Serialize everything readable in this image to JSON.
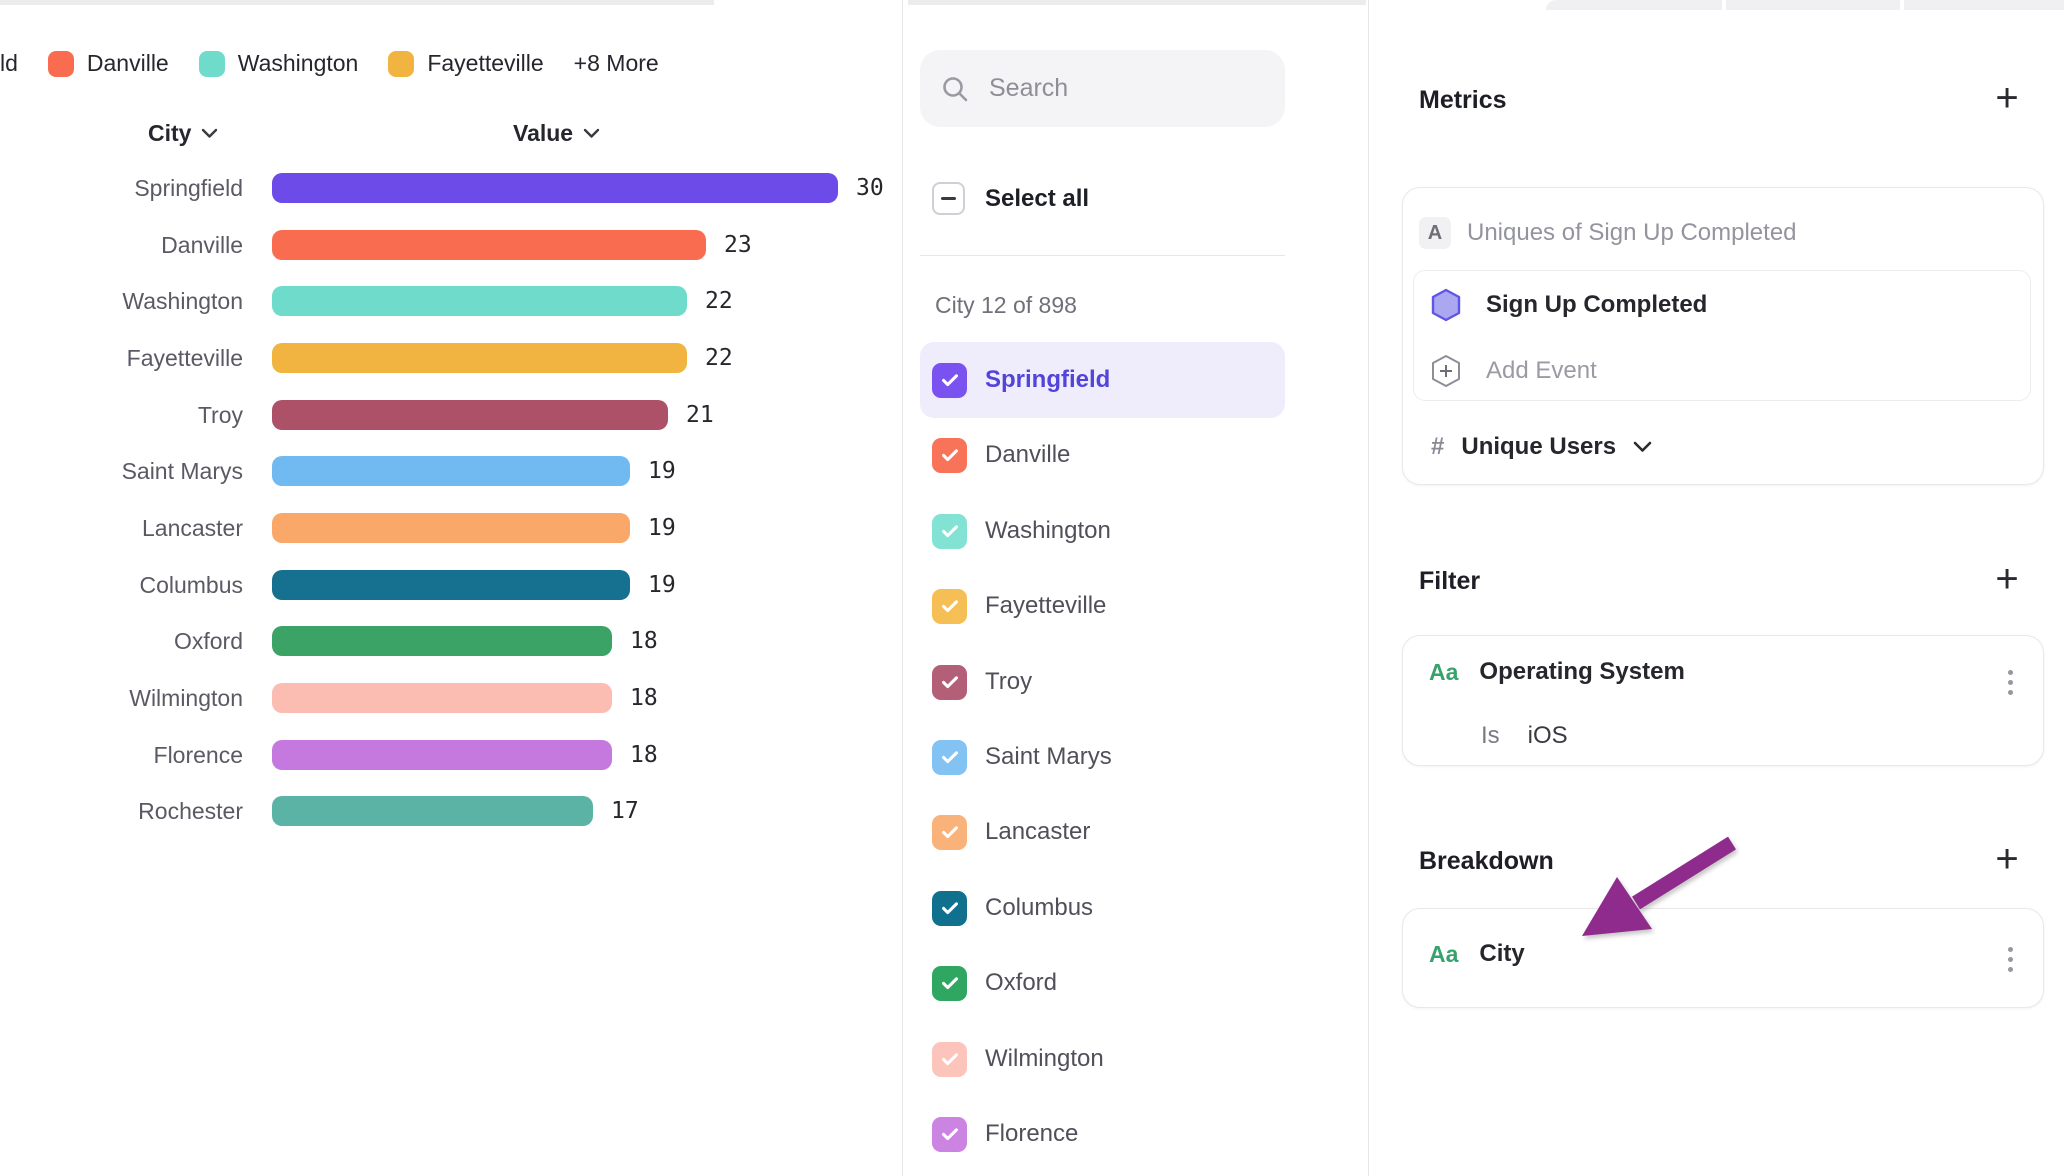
{
  "legend": {
    "truncated_label": "ld",
    "items": [
      {
        "label": "Danville",
        "color": "#F96C50"
      },
      {
        "label": "Washington",
        "color": "#6FDCCB"
      },
      {
        "label": "Fayetteville",
        "color": "#F2B440"
      }
    ],
    "more_label": "+8 More"
  },
  "chart_data": {
    "type": "bar",
    "orientation": "horizontal",
    "column_headers": [
      "City",
      "Value"
    ],
    "categories": [
      "Springfield",
      "Danville",
      "Washington",
      "Fayetteville",
      "Troy",
      "Saint Marys",
      "Lancaster",
      "Columbus",
      "Oxford",
      "Wilmington",
      "Florence",
      "Rochester"
    ],
    "values": [
      30,
      23,
      22,
      22,
      21,
      19,
      19,
      19,
      18,
      18,
      18,
      17
    ],
    "colors": [
      "#6C4BE8",
      "#F96C50",
      "#6FDCCB",
      "#F2B440",
      "#AC5168",
      "#70B9F1",
      "#F9A869",
      "#15718F",
      "#3CA367",
      "#FBBCB1",
      "#C579DE",
      "#5AB3A4"
    ],
    "xlim": [
      0,
      30
    ],
    "value_labels_shown": true,
    "grid": false,
    "legend_position": "top"
  },
  "selector": {
    "search_placeholder": "Search",
    "select_all_label": "Select all",
    "count_label": "City 12 of 898",
    "items": [
      {
        "label": "Springfield",
        "color": "#7A52F0",
        "checked": true,
        "highlighted": true
      },
      {
        "label": "Danville",
        "color": "#F97358",
        "checked": true,
        "highlighted": false
      },
      {
        "label": "Washington",
        "color": "#82E2D3",
        "checked": true,
        "highlighted": false
      },
      {
        "label": "Fayetteville",
        "color": "#F6BF55",
        "checked": true,
        "highlighted": false
      },
      {
        "label": "Troy",
        "color": "#B25F77",
        "checked": true,
        "highlighted": false
      },
      {
        "label": "Saint Marys",
        "color": "#82C3F3",
        "checked": true,
        "highlighted": false
      },
      {
        "label": "Lancaster",
        "color": "#FAB27B",
        "checked": true,
        "highlighted": false
      },
      {
        "label": "Columbus",
        "color": "#10718F",
        "checked": true,
        "highlighted": false
      },
      {
        "label": "Oxford",
        "color": "#2FA763",
        "checked": true,
        "highlighted": false
      },
      {
        "label": "Wilmington",
        "color": "#FCC4BA",
        "checked": true,
        "highlighted": false
      },
      {
        "label": "Florence",
        "color": "#CB84E2",
        "checked": true,
        "highlighted": false
      }
    ]
  },
  "inspector": {
    "metrics": {
      "title": "Metrics",
      "add_icon": "+",
      "row_badge": "A",
      "row_label": "Uniques of Sign Up Completed",
      "event_label": "Sign Up Completed",
      "add_event_label": "Add Event",
      "measure_hash": "#",
      "measure_label": "Unique Users"
    },
    "filter": {
      "title": "Filter",
      "add_icon": "+",
      "type_icon": "Aa",
      "property": "Operating System",
      "operator": "Is",
      "value": "iOS"
    },
    "breakdown": {
      "title": "Breakdown",
      "add_icon": "+",
      "type_icon": "Aa",
      "property": "City"
    },
    "accent_colors": {
      "type_icon_green": "#36A26C",
      "annotation_arrow": "#8E2B8C",
      "event_hexagon_fill": "#ACA7F1",
      "event_hexagon_stroke": "#5F55E6"
    }
  }
}
